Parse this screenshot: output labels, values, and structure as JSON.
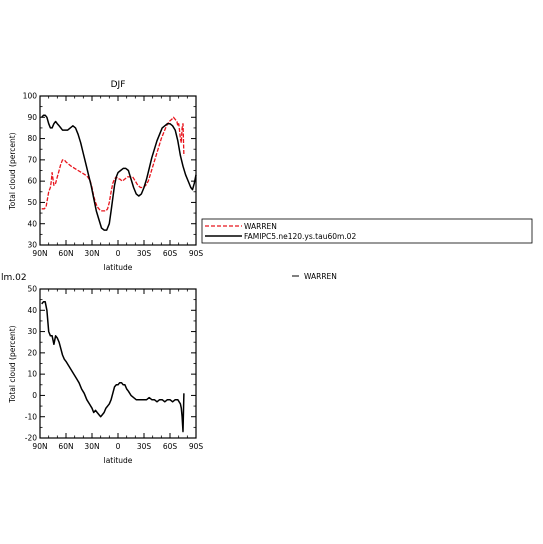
{
  "chart_data": [
    {
      "type": "line",
      "title": "DJF",
      "xlabel": "latitude",
      "ylabel": "Total cloud (percent)",
      "xlim": [
        90,
        -90
      ],
      "ylim": [
        30,
        100
      ],
      "xticks": [
        90,
        60,
        30,
        0,
        -30,
        -60,
        -90
      ],
      "xtick_labels": [
        "90N",
        "60N",
        "30N",
        "0",
        "30S",
        "60S",
        "90S"
      ],
      "yticks": [
        30,
        40,
        50,
        60,
        70,
        80,
        90,
        100
      ],
      "ytick_labels": [
        "30",
        "40",
        "50",
        "60",
        "70",
        "80",
        "90",
        "100"
      ],
      "legend": {
        "placement": "right",
        "entries": [
          "WARREN",
          "FAMIPC5.ne120.ys.tau60m.02"
        ]
      },
      "series": [
        {
          "name": "WARREN",
          "color": "#e8141c",
          "dash": "dashed",
          "x": [
            88,
            85,
            83,
            80,
            78,
            77,
            76,
            74,
            72,
            70,
            68,
            66,
            64,
            62,
            60,
            57,
            54,
            50,
            46,
            42,
            38,
            35,
            32,
            30,
            28,
            26,
            24,
            22,
            20,
            18,
            16,
            14,
            12,
            10,
            8,
            6,
            4,
            2,
            0,
            -2,
            -5,
            -8,
            -11,
            -14,
            -17,
            -20,
            -23,
            -26,
            -29,
            -32,
            -35,
            -38,
            -41,
            -44,
            -47,
            -50,
            -53,
            -56,
            -59,
            -62,
            -64,
            -66,
            -68,
            -69,
            -70,
            -71,
            -72,
            -73,
            -74,
            -75,
            -76
          ],
          "y": [
            47,
            47,
            48,
            55,
            57,
            60,
            64,
            58,
            59,
            62,
            65,
            68,
            70,
            70,
            69,
            68,
            67,
            66,
            65,
            64,
            63,
            62,
            60,
            57,
            53,
            50,
            48,
            47,
            46,
            46,
            46,
            46,
            47,
            50,
            55,
            59,
            61,
            62,
            61,
            61,
            60,
            61,
            62,
            62,
            62,
            60,
            58,
            57,
            57,
            58,
            60,
            64,
            68,
            72,
            76,
            80,
            83,
            86,
            88,
            89,
            90,
            89,
            88,
            86,
            87,
            84,
            80,
            78,
            85,
            87,
            72
          ]
        },
        {
          "name": "FAMIPC5.ne120.ys.tau60m.02",
          "color": "#000000",
          "dash": "solid",
          "x": [
            88,
            86,
            84,
            82,
            80,
            78,
            76,
            74,
            72,
            70,
            68,
            66,
            64,
            62,
            60,
            58,
            55,
            52,
            49,
            46,
            43,
            40,
            37,
            34,
            31,
            28,
            25,
            22,
            19,
            16,
            13,
            10,
            8,
            6,
            4,
            2,
            0,
            -3,
            -6,
            -9,
            -12,
            -15,
            -18,
            -21,
            -24,
            -27,
            -30,
            -33,
            -36,
            -39,
            -42,
            -45,
            -48,
            -51,
            -54,
            -57,
            -60,
            -63,
            -66,
            -69,
            -72,
            -75,
            -78,
            -81,
            -84,
            -86,
            -88,
            -90
          ],
          "y": [
            90,
            91,
            91,
            90,
            87,
            85,
            85,
            87,
            88,
            87,
            86,
            85,
            84,
            84,
            84,
            84,
            85,
            86,
            85,
            82,
            78,
            73,
            68,
            63,
            58,
            52,
            46,
            42,
            38,
            37,
            37,
            40,
            46,
            52,
            58,
            62,
            64,
            65,
            66,
            66,
            65,
            61,
            57,
            54,
            53,
            54,
            57,
            61,
            66,
            71,
            75,
            79,
            82,
            85,
            86,
            87,
            87,
            86,
            84,
            79,
            72,
            67,
            63,
            60,
            57,
            56,
            59,
            63
          ]
        }
      ]
    },
    {
      "type": "line",
      "title": "",
      "xlabel": "latitude",
      "ylabel": "Total cloud (percent)",
      "xlim": [
        90,
        -90
      ],
      "ylim": [
        -20,
        50
      ],
      "xticks": [
        90,
        60,
        30,
        0,
        -30,
        -60,
        -90
      ],
      "xtick_labels": [
        "90N",
        "60N",
        "30N",
        "0",
        "30S",
        "60S",
        "90S"
      ],
      "yticks": [
        -20,
        -10,
        0,
        10,
        20,
        30,
        40,
        50
      ],
      "ytick_labels": [
        "-20",
        "-10",
        "0",
        "10",
        "20",
        "30",
        "40",
        "50"
      ],
      "series": [
        {
          "name": "",
          "color": "#000000",
          "dash": "solid",
          "x": [
            88,
            86,
            84,
            82,
            80,
            78,
            76,
            74,
            72,
            70,
            68,
            66,
            64,
            62,
            60,
            57,
            54,
            51,
            48,
            45,
            42,
            39,
            36,
            33,
            30,
            28,
            26,
            24,
            22,
            20,
            18,
            16,
            14,
            12,
            10,
            8,
            6,
            4,
            2,
            0,
            -2,
            -4,
            -6,
            -8,
            -10,
            -12,
            -15,
            -18,
            -21,
            -24,
            -27,
            -30,
            -33,
            -36,
            -39,
            -42,
            -45,
            -48,
            -51,
            -54,
            -57,
            -60,
            -63,
            -66,
            -69,
            -72,
            -73,
            -74,
            -75,
            -76
          ],
          "y": [
            43,
            44,
            44,
            40,
            30,
            28,
            28,
            24,
            28,
            27,
            25,
            22,
            19,
            17,
            16,
            14,
            12,
            10,
            8,
            6,
            3,
            1,
            -2,
            -4,
            -6,
            -8,
            -7,
            -8,
            -9,
            -10,
            -9,
            -8,
            -6,
            -5,
            -4,
            -2,
            1,
            4,
            5,
            5,
            6,
            6,
            5,
            5,
            3,
            2,
            0,
            -1,
            -2,
            -2,
            -2,
            -2,
            -2,
            -1,
            -2,
            -2,
            -3,
            -2,
            -2,
            -3,
            -2,
            -2,
            -3,
            -2,
            -2,
            -4,
            -6,
            -10,
            -17,
            1
          ]
        }
      ]
    }
  ],
  "header_fragment": "lm.02",
  "right_legend_label": "WARREN"
}
